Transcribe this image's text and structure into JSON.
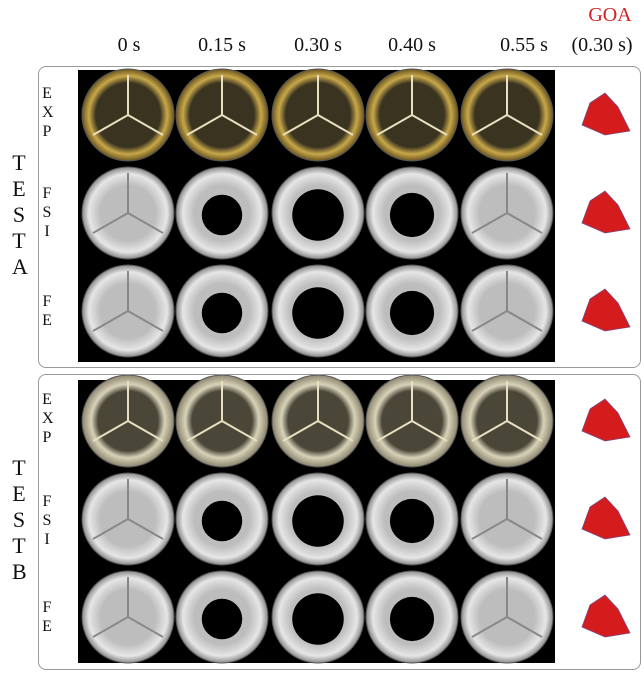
{
  "header": {
    "goa": "GOA",
    "goa_time": "(0.30 s)",
    "columns": [
      "0 s",
      "0.15 s",
      "0.30 s",
      "0.40 s",
      "0.55 s"
    ]
  },
  "panels": [
    {
      "label": "TEST A",
      "rows": [
        "EXP",
        "FSI",
        "FE"
      ]
    },
    {
      "label": "TEST B",
      "rows": [
        "EXP",
        "FSI",
        "FE"
      ]
    }
  ]
}
